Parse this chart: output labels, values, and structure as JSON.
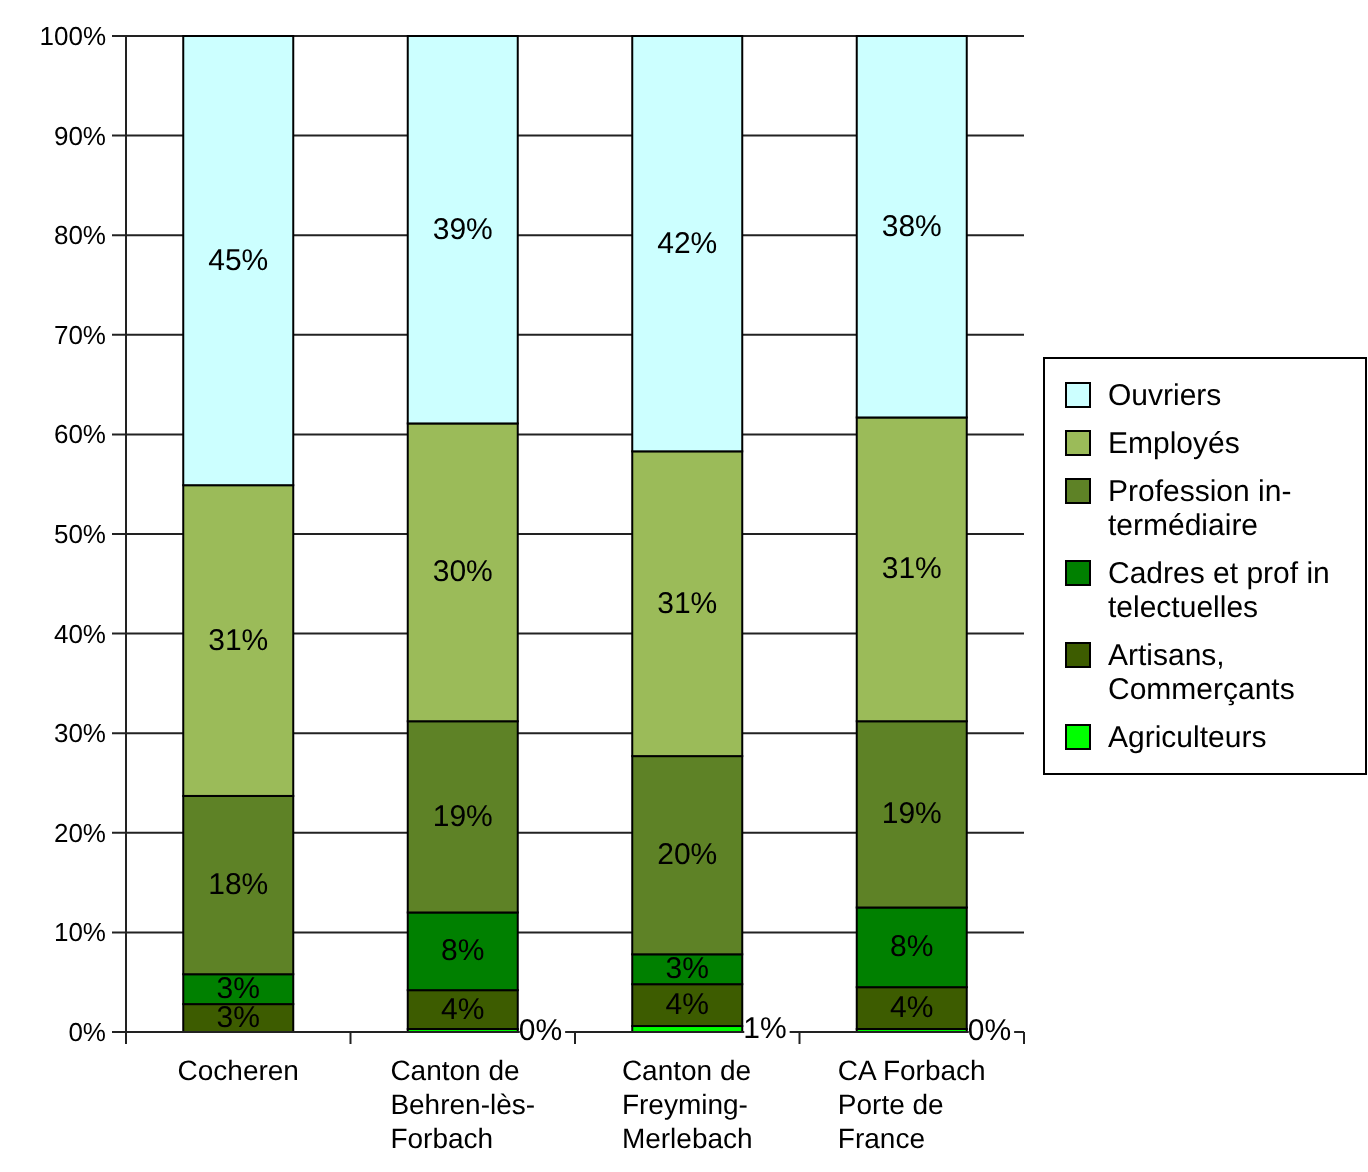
{
  "chart_data": {
    "type": "bar",
    "stacked": true,
    "categories": [
      "Cocheren",
      "Canton de Behren-lès-Forbach",
      "Canton de Freyming-Merlebach",
      "CA Forbach Porte de France"
    ],
    "series": [
      {
        "name": "Agriculteurs",
        "color": "#00ff00",
        "values": [
          null,
          0.3,
          0.6,
          0.3
        ],
        "value_labels": [
          null,
          "0%",
          "1%",
          "0%"
        ]
      },
      {
        "name": "Artisans, Commerçants",
        "color": "#3d5c00",
        "values": [
          2.8,
          3.9,
          4.2,
          4.2
        ],
        "value_labels": [
          "3%",
          "4%",
          "4%",
          "4%"
        ]
      },
      {
        "name": "Cadres et prof in telectuelles",
        "color": "#008000",
        "values": [
          3.0,
          7.8,
          3.0,
          8.0
        ],
        "value_labels": [
          "3%",
          "8%",
          "3%",
          "8%"
        ]
      },
      {
        "name": "Profession in-termédiaire",
        "color": "#5e8226",
        "values": [
          17.9,
          19.2,
          19.9,
          18.7
        ],
        "value_labels": [
          "18%",
          "19%",
          "20%",
          "19%"
        ]
      },
      {
        "name": "Employés",
        "color": "#9bbb59",
        "values": [
          31.2,
          29.9,
          30.6,
          30.5
        ],
        "value_labels": [
          "31%",
          "30%",
          "31%",
          "31%"
        ]
      },
      {
        "name": "Ouvriers",
        "color": "#ccffff",
        "values": [
          45.1,
          38.9,
          41.7,
          38.3
        ],
        "value_labels": [
          "45%",
          "39%",
          "42%",
          "38%"
        ]
      }
    ],
    "ylim": [
      0,
      100
    ],
    "yticks": [
      {
        "value": 0,
        "label": "0%"
      },
      {
        "value": 10,
        "label": "10%"
      },
      {
        "value": 20,
        "label": "20%"
      },
      {
        "value": 30,
        "label": "30%"
      },
      {
        "value": 40,
        "label": "40%"
      },
      {
        "value": 50,
        "label": "50%"
      },
      {
        "value": 60,
        "label": "60%"
      },
      {
        "value": 70,
        "label": "70%"
      },
      {
        "value": 80,
        "label": "80%"
      },
      {
        "value": 90,
        "label": "90%"
      },
      {
        "value": 100,
        "label": "100%"
      }
    ],
    "grid": "y",
    "legend": "right"
  }
}
